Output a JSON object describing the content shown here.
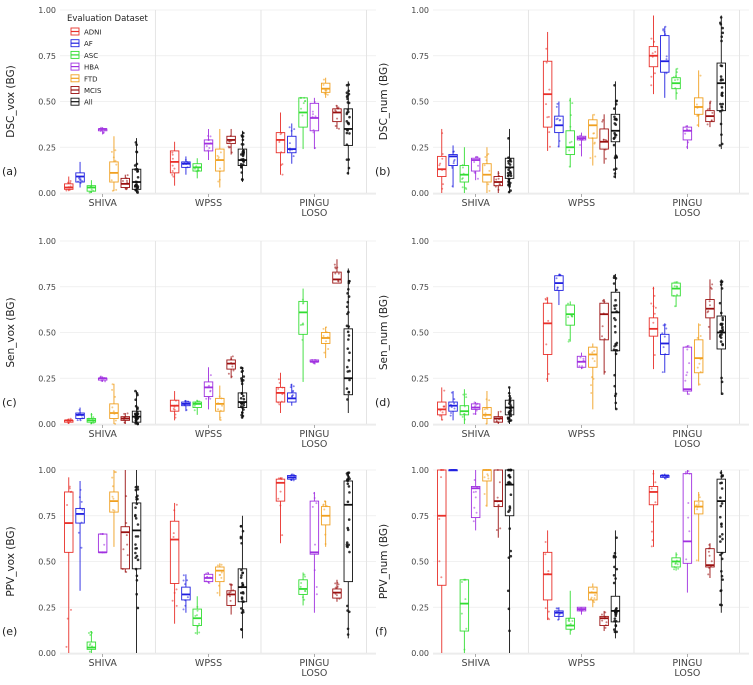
{
  "chart_data": {
    "type": "box",
    "legend": {
      "title": "Evaluation Dataset",
      "placement": "top-left of panel (a)",
      "entries": [
        {
          "name": "ADNI",
          "color": "#e8302a"
        },
        {
          "name": "AF",
          "color": "#2020e0"
        },
        {
          "name": "ASC",
          "color": "#33dd33"
        },
        {
          "name": "HBA",
          "color": "#a030e0"
        },
        {
          "name": "FTD",
          "color": "#f0a020"
        },
        {
          "name": "MCIS",
          "color": "#9a1010"
        },
        {
          "name": "All",
          "color": "#111111"
        }
      ]
    },
    "groups": [
      "SHIVA",
      "WPSS",
      "PINGU\nLOSO"
    ],
    "ylim": [
      0,
      1
    ],
    "yticks": [
      "0.00",
      "0.25",
      "0.50",
      "0.75",
      "1.00"
    ],
    "panels": [
      {
        "id": "a",
        "label": "(a)",
        "ylabel": "DSC_vox (BG)",
        "boxes": [
          [
            [
              0.01,
              0.02,
              0.03,
              0.05,
              0.09
            ],
            [
              0.03,
              0.06,
              0.09,
              0.11,
              0.17
            ],
            [
              0.0,
              0.01,
              0.03,
              0.04,
              0.07
            ],
            [
              0.32,
              0.34,
              0.35,
              0.35,
              0.36
            ],
            [
              0.01,
              0.06,
              0.11,
              0.17,
              0.31
            ],
            [
              0.02,
              0.03,
              0.05,
              0.08,
              0.1
            ],
            [
              0.0,
              0.02,
              0.06,
              0.13,
              0.3
            ]
          ],
          [
            [
              0.04,
              0.11,
              0.17,
              0.23,
              0.28
            ],
            [
              0.1,
              0.14,
              0.16,
              0.17,
              0.2
            ],
            [
              0.08,
              0.12,
              0.14,
              0.16,
              0.19
            ],
            [
              0.18,
              0.23,
              0.27,
              0.29,
              0.35
            ],
            [
              0.03,
              0.12,
              0.18,
              0.24,
              0.35
            ],
            [
              0.21,
              0.27,
              0.29,
              0.31,
              0.35
            ],
            [
              0.06,
              0.15,
              0.18,
              0.24,
              0.34
            ]
          ],
          [
            [
              0.1,
              0.22,
              0.29,
              0.33,
              0.44
            ],
            [
              0.16,
              0.22,
              0.24,
              0.31,
              0.38
            ],
            [
              0.24,
              0.36,
              0.44,
              0.52,
              0.52
            ],
            [
              0.24,
              0.34,
              0.41,
              0.49,
              0.52
            ],
            [
              0.52,
              0.55,
              0.57,
              0.6,
              0.63
            ],
            [
              0.35,
              0.39,
              0.44,
              0.46,
              0.48
            ],
            [
              0.1,
              0.26,
              0.35,
              0.46,
              0.61
            ]
          ]
        ]
      },
      {
        "id": "b",
        "label": "(b)",
        "ylabel": "DSC_num (BG)",
        "boxes": [
          [
            [
              0.0,
              0.09,
              0.13,
              0.2,
              0.35
            ],
            [
              0.03,
              0.15,
              0.2,
              0.21,
              0.26
            ],
            [
              0.0,
              0.06,
              0.1,
              0.15,
              0.25
            ],
            [
              0.07,
              0.12,
              0.18,
              0.19,
              0.2
            ],
            [
              0.0,
              0.06,
              0.1,
              0.16,
              0.25
            ],
            [
              0.0,
              0.04,
              0.06,
              0.09,
              0.12
            ],
            [
              0.0,
              0.08,
              0.14,
              0.19,
              0.35
            ]
          ],
          [
            [
              0.23,
              0.36,
              0.54,
              0.72,
              0.88
            ],
            [
              0.25,
              0.33,
              0.37,
              0.42,
              0.5
            ],
            [
              0.14,
              0.21,
              0.25,
              0.34,
              0.52
            ],
            [
              0.2,
              0.29,
              0.3,
              0.31,
              0.33
            ],
            [
              0.15,
              0.3,
              0.37,
              0.4,
              0.43
            ],
            [
              0.16,
              0.24,
              0.28,
              0.35,
              0.43
            ],
            [
              0.08,
              0.28,
              0.34,
              0.43,
              0.61
            ]
          ],
          [
            [
              0.54,
              0.69,
              0.75,
              0.8,
              0.97
            ],
            [
              0.52,
              0.66,
              0.72,
              0.86,
              0.91
            ],
            [
              0.51,
              0.57,
              0.6,
              0.63,
              0.68
            ],
            [
              0.24,
              0.29,
              0.34,
              0.36,
              0.37
            ],
            [
              0.36,
              0.43,
              0.47,
              0.52,
              0.67
            ],
            [
              0.36,
              0.39,
              0.42,
              0.45,
              0.5
            ],
            [
              0.24,
              0.45,
              0.6,
              0.71,
              0.97
            ]
          ]
        ]
      },
      {
        "id": "c",
        "label": "(c)",
        "ylabel": "Sen_vox (BG)",
        "boxes": [
          [
            [
              0.0,
              0.01,
              0.02,
              0.02,
              0.03
            ],
            [
              0.02,
              0.03,
              0.05,
              0.06,
              0.09
            ],
            [
              0.0,
              0.01,
              0.02,
              0.03,
              0.06
            ],
            [
              0.23,
              0.24,
              0.25,
              0.25,
              0.26
            ],
            [
              0.0,
              0.03,
              0.06,
              0.11,
              0.22
            ],
            [
              0.0,
              0.02,
              0.03,
              0.04,
              0.06
            ],
            [
              0.0,
              0.01,
              0.04,
              0.07,
              0.18
            ]
          ],
          [
            [
              0.02,
              0.07,
              0.1,
              0.13,
              0.18
            ],
            [
              0.07,
              0.1,
              0.11,
              0.12,
              0.13
            ],
            [
              0.05,
              0.09,
              0.11,
              0.12,
              0.13
            ],
            [
              0.08,
              0.15,
              0.2,
              0.23,
              0.31
            ],
            [
              0.02,
              0.07,
              0.11,
              0.14,
              0.21
            ],
            [
              0.25,
              0.3,
              0.33,
              0.35,
              0.37
            ],
            [
              0.03,
              0.09,
              0.12,
              0.17,
              0.31
            ]
          ],
          [
            [
              0.06,
              0.12,
              0.17,
              0.2,
              0.28
            ],
            [
              0.1,
              0.12,
              0.14,
              0.17,
              0.22
            ],
            [
              0.23,
              0.49,
              0.61,
              0.67,
              0.74
            ],
            [
              0.33,
              0.34,
              0.34,
              0.35,
              0.35
            ],
            [
              0.36,
              0.44,
              0.47,
              0.5,
              0.53
            ],
            [
              0.77,
              0.77,
              0.79,
              0.83,
              0.9
            ],
            [
              0.06,
              0.16,
              0.25,
              0.52,
              0.85
            ]
          ]
        ]
      },
      {
        "id": "d",
        "label": "(d)",
        "ylabel": "Sen_num (BG)",
        "boxes": [
          [
            [
              0.02,
              0.05,
              0.08,
              0.12,
              0.2
            ],
            [
              0.02,
              0.07,
              0.1,
              0.12,
              0.18
            ],
            [
              0.0,
              0.05,
              0.07,
              0.1,
              0.19
            ],
            [
              0.05,
              0.08,
              0.09,
              0.11,
              0.12
            ],
            [
              0.0,
              0.03,
              0.05,
              0.09,
              0.18
            ],
            [
              0.0,
              0.01,
              0.03,
              0.04,
              0.07
            ],
            [
              0.0,
              0.05,
              0.09,
              0.13,
              0.2
            ]
          ],
          [
            [
              0.23,
              0.38,
              0.55,
              0.66,
              0.69
            ],
            [
              0.65,
              0.73,
              0.77,
              0.81,
              0.82
            ],
            [
              0.45,
              0.54,
              0.6,
              0.65,
              0.67
            ],
            [
              0.3,
              0.31,
              0.34,
              0.37,
              0.39
            ],
            [
              0.08,
              0.31,
              0.38,
              0.42,
              0.44
            ],
            [
              0.27,
              0.46,
              0.6,
              0.66,
              0.68
            ],
            [
              0.08,
              0.4,
              0.61,
              0.72,
              0.82
            ]
          ],
          [
            [
              0.3,
              0.48,
              0.52,
              0.58,
              0.75
            ],
            [
              0.28,
              0.38,
              0.44,
              0.49,
              0.55
            ],
            [
              0.64,
              0.7,
              0.74,
              0.77,
              0.78
            ],
            [
              0.16,
              0.18,
              0.19,
              0.42,
              0.43
            ],
            [
              0.21,
              0.28,
              0.36,
              0.46,
              0.55
            ],
            [
              0.46,
              0.58,
              0.63,
              0.68,
              0.79
            ],
            [
              0.16,
              0.41,
              0.5,
              0.59,
              0.79
            ]
          ]
        ]
      },
      {
        "id": "e",
        "label": "(e)",
        "ylabel": "PPV_vox (BG)",
        "boxes": [
          [
            [
              0.0,
              0.55,
              0.71,
              0.88,
              0.96
            ],
            [
              0.34,
              0.71,
              0.76,
              0.79,
              0.94
            ],
            [
              0.0,
              0.02,
              0.03,
              0.06,
              0.12
            ],
            [
              0.55,
              0.55,
              0.55,
              0.65,
              0.65
            ],
            [
              0.58,
              0.77,
              0.83,
              0.88,
              1.0
            ],
            [
              0.44,
              0.46,
              0.66,
              0.69,
              1.0
            ],
            [
              0.0,
              0.46,
              0.67,
              0.82,
              1.0
            ]
          ],
          [
            [
              0.16,
              0.38,
              0.62,
              0.72,
              0.82
            ],
            [
              0.22,
              0.29,
              0.32,
              0.36,
              0.43
            ],
            [
              0.1,
              0.15,
              0.19,
              0.24,
              0.31
            ],
            [
              0.38,
              0.39,
              0.41,
              0.43,
              0.44
            ],
            [
              0.31,
              0.39,
              0.45,
              0.47,
              0.49
            ],
            [
              0.21,
              0.26,
              0.32,
              0.34,
              0.38
            ],
            [
              0.08,
              0.28,
              0.36,
              0.46,
              0.75
            ]
          ],
          [
            [
              0.6,
              0.83,
              0.93,
              0.95,
              0.96
            ],
            [
              0.94,
              0.95,
              0.96,
              0.97,
              0.98
            ],
            [
              0.26,
              0.32,
              0.35,
              0.4,
              0.44
            ],
            [
              0.22,
              0.54,
              0.55,
              0.83,
              0.88
            ],
            [
              0.58,
              0.7,
              0.75,
              0.8,
              0.83
            ],
            [
              0.28,
              0.3,
              0.33,
              0.35,
              0.4
            ],
            [
              0.08,
              0.39,
              0.81,
              0.94,
              0.99
            ]
          ]
        ]
      },
      {
        "id": "f",
        "label": "(f)",
        "ylabel": "PPV_num (BG)",
        "boxes": [
          [
            [
              0.0,
              0.37,
              0.75,
              1.0,
              1.0
            ],
            [
              1.0,
              1.0,
              1.0,
              1.0,
              1.0
            ],
            [
              0.0,
              0.12,
              0.27,
              0.4,
              0.4
            ],
            [
              0.67,
              0.74,
              0.9,
              0.91,
              1.0
            ],
            [
              0.8,
              0.94,
              1.0,
              1.0,
              1.0
            ],
            [
              0.63,
              0.8,
              0.83,
              1.0,
              1.0
            ],
            [
              0.0,
              0.75,
              0.92,
              1.0,
              1.0
            ]
          ],
          [
            [
              0.18,
              0.29,
              0.43,
              0.55,
              0.67
            ],
            [
              0.18,
              0.2,
              0.22,
              0.23,
              0.25
            ],
            [
              0.1,
              0.13,
              0.15,
              0.19,
              0.34
            ],
            [
              0.21,
              0.23,
              0.24,
              0.25,
              0.25
            ],
            [
              0.25,
              0.29,
              0.33,
              0.36,
              0.38
            ],
            [
              0.12,
              0.15,
              0.19,
              0.2,
              0.23
            ],
            [
              0.08,
              0.17,
              0.23,
              0.31,
              0.67
            ]
          ],
          [
            [
              0.58,
              0.81,
              0.88,
              0.91,
              1.0
            ],
            [
              0.95,
              0.96,
              0.97,
              0.97,
              0.98
            ],
            [
              0.45,
              0.47,
              0.5,
              0.52,
              0.55
            ],
            [
              0.33,
              0.49,
              0.61,
              0.98,
              1.0
            ],
            [
              0.5,
              0.76,
              0.8,
              0.83,
              0.88
            ],
            [
              0.41,
              0.47,
              0.48,
              0.57,
              0.6
            ],
            [
              0.22,
              0.55,
              0.83,
              0.95,
              1.0
            ]
          ]
        ]
      }
    ]
  }
}
